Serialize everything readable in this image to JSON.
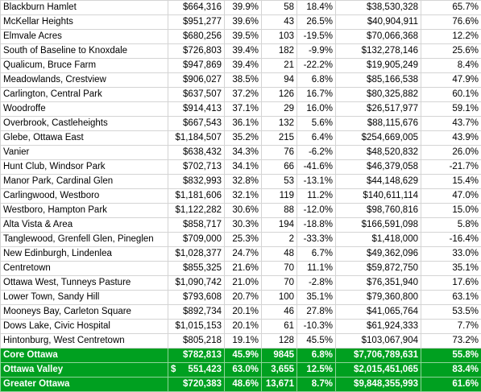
{
  "rows": [
    {
      "name": "Blackburn Hamlet",
      "price": "$664,316",
      "price_pct": "39.9%",
      "sales": "58",
      "sales_pct": "18.4%",
      "volume": "$38,530,328",
      "volume_pct": "65.7%"
    },
    {
      "name": "McKellar Heights",
      "price": "$951,277",
      "price_pct": "39.6%",
      "sales": "43",
      "sales_pct": "26.5%",
      "volume": "$40,904,911",
      "volume_pct": "76.6%"
    },
    {
      "name": "Elmvale Acres",
      "price": "$680,256",
      "price_pct": "39.5%",
      "sales": "103",
      "sales_pct": "-19.5%",
      "volume": "$70,066,368",
      "volume_pct": "12.2%"
    },
    {
      "name": "South of Baseline to Knoxdale",
      "price": "$726,803",
      "price_pct": "39.4%",
      "sales": "182",
      "sales_pct": "-9.9%",
      "volume": "$132,278,146",
      "volume_pct": "25.6%"
    },
    {
      "name": "Qualicum, Bruce Farm",
      "price": "$947,869",
      "price_pct": "39.4%",
      "sales": "21",
      "sales_pct": "-22.2%",
      "volume": "$19,905,249",
      "volume_pct": "8.4%"
    },
    {
      "name": "Meadowlands, Crestview",
      "price": "$906,027",
      "price_pct": "38.5%",
      "sales": "94",
      "sales_pct": "6.8%",
      "volume": "$85,166,538",
      "volume_pct": "47.9%"
    },
    {
      "name": "Carlington, Central Park",
      "price": "$637,507",
      "price_pct": "37.2%",
      "sales": "126",
      "sales_pct": "16.7%",
      "volume": "$80,325,882",
      "volume_pct": "60.1%"
    },
    {
      "name": "Woodroffe",
      "price": "$914,413",
      "price_pct": "37.1%",
      "sales": "29",
      "sales_pct": "16.0%",
      "volume": "$26,517,977",
      "volume_pct": "59.1%"
    },
    {
      "name": "Overbrook, Castleheights",
      "price": "$667,543",
      "price_pct": "36.1%",
      "sales": "132",
      "sales_pct": "5.6%",
      "volume": "$88,115,676",
      "volume_pct": "43.7%"
    },
    {
      "name": "Glebe, Ottawa East",
      "price": "$1,184,507",
      "price_pct": "35.2%",
      "sales": "215",
      "sales_pct": "6.4%",
      "volume": "$254,669,005",
      "volume_pct": "43.9%"
    },
    {
      "name": "Vanier",
      "price": "$638,432",
      "price_pct": "34.3%",
      "sales": "76",
      "sales_pct": "-6.2%",
      "volume": "$48,520,832",
      "volume_pct": "26.0%"
    },
    {
      "name": "Hunt Club, Windsor Park",
      "price": "$702,713",
      "price_pct": "34.1%",
      "sales": "66",
      "sales_pct": "-41.6%",
      "volume": "$46,379,058",
      "volume_pct": "-21.7%"
    },
    {
      "name": "Manor Park, Cardinal Glen",
      "price": "$832,993",
      "price_pct": "32.8%",
      "sales": "53",
      "sales_pct": "-13.1%",
      "volume": "$44,148,629",
      "volume_pct": "15.4%"
    },
    {
      "name": "Carlingwood, Westboro",
      "price": "$1,181,606",
      "price_pct": "32.1%",
      "sales": "119",
      "sales_pct": "11.2%",
      "volume": "$140,611,114",
      "volume_pct": "47.0%"
    },
    {
      "name": "Westboro, Hampton Park",
      "price": "$1,122,282",
      "price_pct": "30.6%",
      "sales": "88",
      "sales_pct": "-12.0%",
      "volume": "$98,760,816",
      "volume_pct": "15.0%"
    },
    {
      "name": "Alta Vista & Area",
      "price": "$858,717",
      "price_pct": "30.3%",
      "sales": "194",
      "sales_pct": "-18.8%",
      "volume": "$166,591,098",
      "volume_pct": "5.8%"
    },
    {
      "name": "Tanglewood, Grenfell Glen, Pineglen",
      "price": "$709,000",
      "price_pct": "25.3%",
      "sales": "2",
      "sales_pct": "-33.3%",
      "volume": "$1,418,000",
      "volume_pct": "-16.4%"
    },
    {
      "name": "New Edinburgh, Lindenlea",
      "price": "$1,028,377",
      "price_pct": "24.7%",
      "sales": "48",
      "sales_pct": "6.7%",
      "volume": "$49,362,096",
      "volume_pct": "33.0%"
    },
    {
      "name": "Centretown",
      "price": "$855,325",
      "price_pct": "21.6%",
      "sales": "70",
      "sales_pct": "11.1%",
      "volume": "$59,872,750",
      "volume_pct": "35.1%"
    },
    {
      "name": "Ottawa West, Tunneys Pasture",
      "price": "$1,090,742",
      "price_pct": "21.0%",
      "sales": "70",
      "sales_pct": "-2.8%",
      "volume": "$76,351,940",
      "volume_pct": "17.6%"
    },
    {
      "name": "Lower Town, Sandy Hill",
      "price": "$793,608",
      "price_pct": "20.7%",
      "sales": "100",
      "sales_pct": "35.1%",
      "volume": "$79,360,800",
      "volume_pct": "63.1%"
    },
    {
      "name": "Mooneys Bay, Carleton Square",
      "price": "$892,734",
      "price_pct": "20.1%",
      "sales": "46",
      "sales_pct": "27.8%",
      "volume": "$41,065,764",
      "volume_pct": "53.5%"
    },
    {
      "name": "Dows Lake, Civic Hospital",
      "price": "$1,015,153",
      "price_pct": "20.1%",
      "sales": "61",
      "sales_pct": "-10.3%",
      "volume": "$61,924,333",
      "volume_pct": "7.7%"
    },
    {
      "name": "Hintonburg, West Centretown",
      "price": "$805,218",
      "price_pct": "19.1%",
      "sales": "128",
      "sales_pct": "45.5%",
      "volume": "$103,067,904",
      "volume_pct": "73.2%"
    }
  ],
  "totals": [
    {
      "name": "Core Ottawa",
      "currency": "",
      "price": "$782,813",
      "price_pct": "45.9%",
      "sales": "9845",
      "sales_pct": "6.8%",
      "volume": "$7,706,789,631",
      "volume_pct": "55.8%"
    },
    {
      "name": "Ottawa Valley",
      "currency": "$",
      "price": "551,423",
      "price_pct": "63.0%",
      "sales": "3,655",
      "sales_pct": "12.5%",
      "volume": "$2,015,451,065",
      "volume_pct": "83.4%"
    },
    {
      "name": "Greater Ottawa",
      "currency": "",
      "price": "$720,383",
      "price_pct": "48.6%",
      "sales": "13,671",
      "sales_pct": "8.7%",
      "volume": "$9,848,355,993",
      "volume_pct": "61.6%"
    }
  ],
  "colors": {
    "total_row_bg": "#00a020",
    "total_row_text": "#ffffff",
    "grid": "#d4d4d4"
  }
}
